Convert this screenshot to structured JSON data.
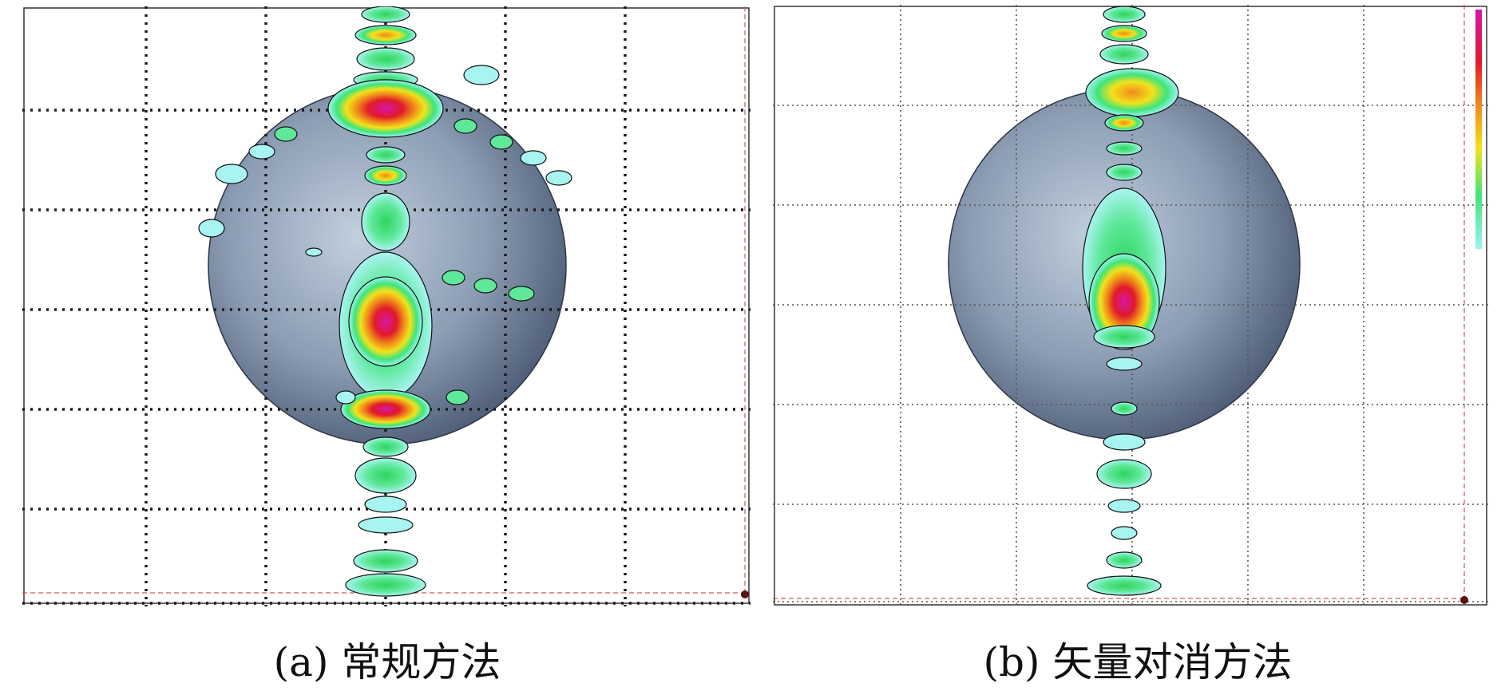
{
  "figure": {
    "panel_a": {
      "caption": "(a) 常规方法"
    },
    "panel_b": {
      "caption": "(b) 矢量对消方法"
    }
  },
  "colors": {
    "grid_a": "#222222",
    "grid_b": "#555555",
    "red_guide": "#d9534f",
    "sphere_light": "#b9c8d8",
    "sphere_dark": "#45556e",
    "colormap": [
      "#9ff2f2",
      "#3ee57a",
      "#f2e21b",
      "#f08a1a",
      "#e01a2a",
      "#d617a8"
    ]
  }
}
